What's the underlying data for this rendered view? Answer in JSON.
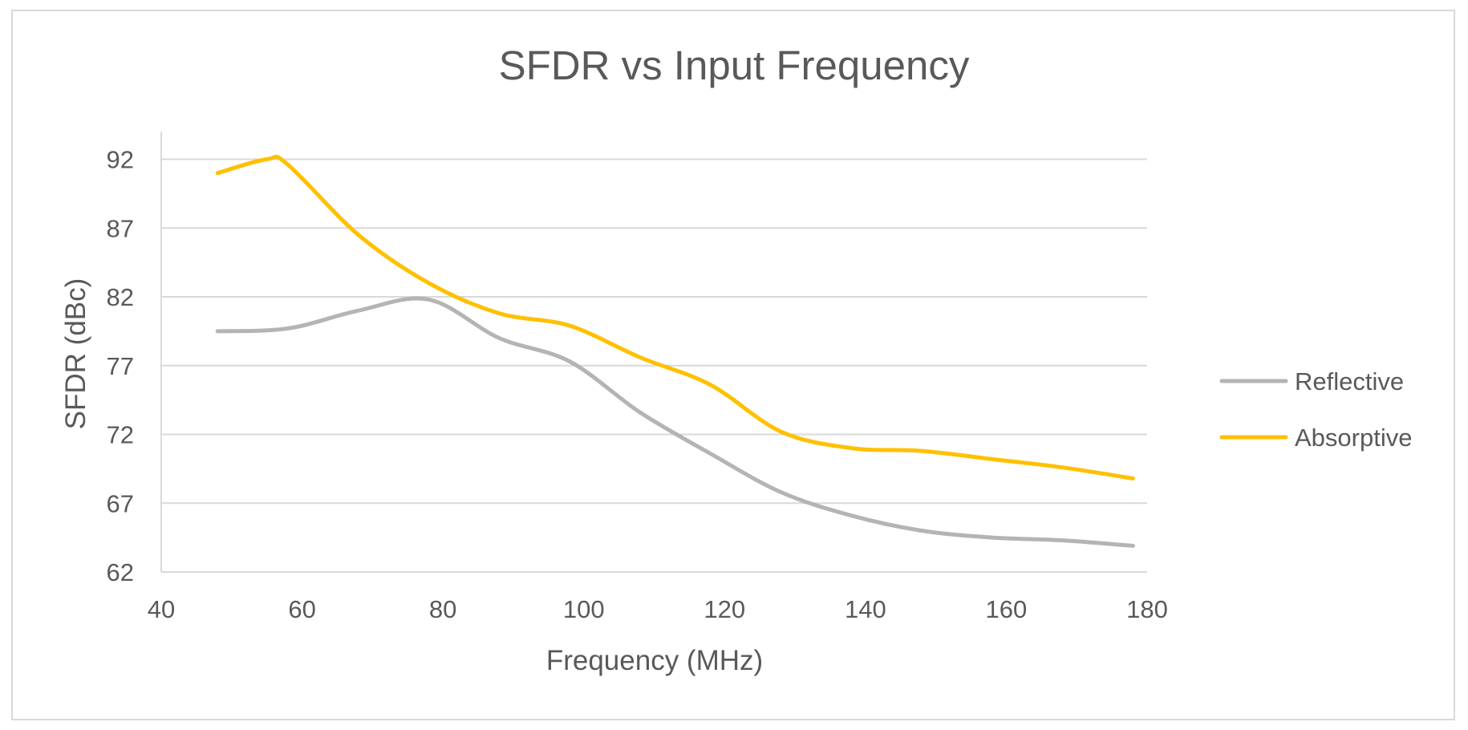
{
  "chart_data": {
    "type": "line",
    "title": "SFDR vs Input Frequency",
    "xlabel": "Frequency (MHz)",
    "ylabel": "SFDR (dBc)",
    "xlim": [
      40,
      180
    ],
    "ylim": [
      62,
      94
    ],
    "xticks": [
      40,
      60,
      80,
      100,
      120,
      140,
      160,
      180
    ],
    "yticks": [
      62,
      67,
      72,
      77,
      82,
      87,
      92
    ],
    "grid": "horizontal",
    "legend_position": "right",
    "series": [
      {
        "name": "Reflective",
        "color": "#b4b4b4",
        "x": [
          48,
          58,
          68,
          78,
          88,
          98,
          108,
          118,
          128,
          138,
          148,
          158,
          168,
          178
        ],
        "y": [
          79.5,
          79.7,
          81.0,
          81.8,
          79.0,
          77.3,
          73.6,
          70.6,
          67.8,
          66.1,
          65.0,
          64.5,
          64.3,
          63.9
        ]
      },
      {
        "name": "Absorptive",
        "color": "#ffc000",
        "x": [
          48,
          55,
          58,
          68,
          78,
          88,
          98,
          108,
          118,
          128,
          138,
          148,
          158,
          168,
          178
        ],
        "y": [
          91.0,
          92.0,
          91.6,
          86.5,
          83.0,
          80.8,
          79.9,
          77.6,
          75.6,
          72.2,
          71.0,
          70.8,
          70.2,
          69.6,
          68.8
        ]
      }
    ]
  }
}
